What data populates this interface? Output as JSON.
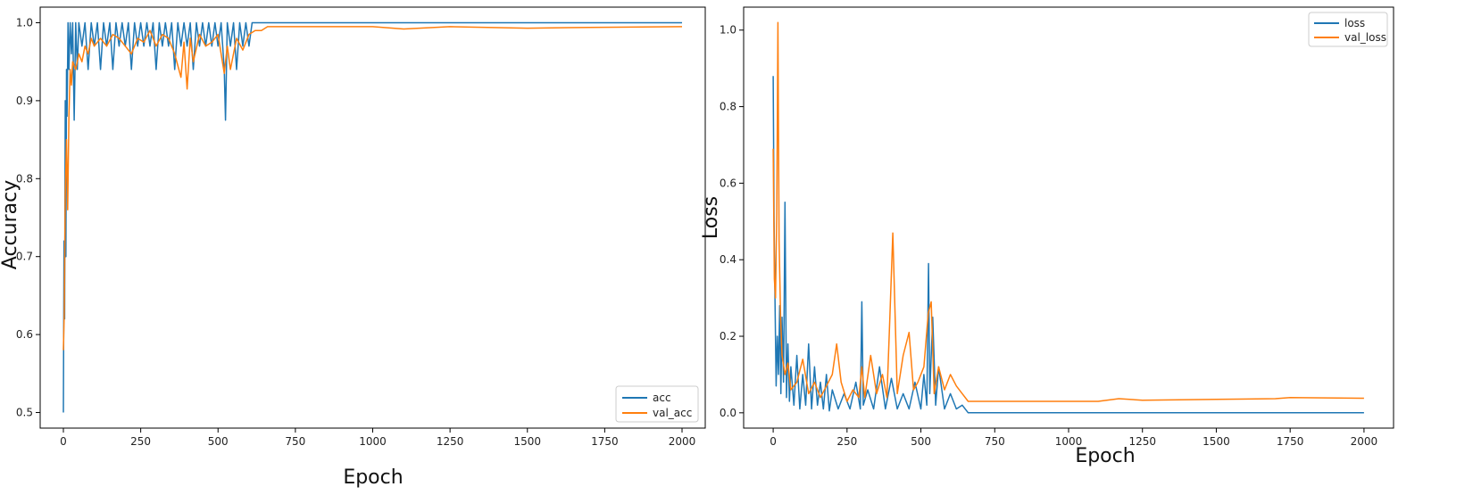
{
  "colors": {
    "train": "#1f77b4",
    "val": "#ff7f0e"
  },
  "chart_data": [
    {
      "type": "line",
      "title": "",
      "xlabel": "Epoch",
      "ylabel": "Accuracy",
      "xlim": [
        -75,
        2075
      ],
      "ylim": [
        0.48,
        1.02
      ],
      "xticks": [
        0,
        250,
        500,
        750,
        1000,
        1250,
        1500,
        1750,
        2000
      ],
      "yticks": [
        0.5,
        0.6,
        0.7,
        0.8,
        0.9,
        1.0
      ],
      "ytick_labels": [
        "0.5",
        "0.6",
        "0.7",
        "0.8",
        "0.9",
        "1.0"
      ],
      "legend": "bottom-right",
      "grid": false,
      "series": [
        {
          "name": "acc",
          "color": "#1f77b4",
          "x": [
            0,
            2,
            4,
            6,
            8,
            10,
            12,
            15,
            18,
            22,
            26,
            30,
            35,
            40,
            45,
            50,
            60,
            70,
            80,
            90,
            100,
            110,
            120,
            130,
            140,
            150,
            160,
            170,
            180,
            190,
            200,
            210,
            220,
            230,
            240,
            250,
            260,
            270,
            280,
            290,
            300,
            310,
            320,
            330,
            340,
            350,
            360,
            370,
            380,
            390,
            400,
            410,
            420,
            430,
            440,
            450,
            460,
            470,
            480,
            490,
            500,
            510,
            520,
            524,
            530,
            540,
            550,
            560,
            570,
            580,
            590,
            600,
            610,
            620,
            650,
            700,
            800,
            1000,
            1250,
            1500,
            1750,
            2000
          ],
          "y": [
            0.5,
            0.72,
            0.62,
            0.9,
            0.7,
            0.94,
            0.88,
            1.0,
            0.94,
            1.0,
            0.96,
            1.0,
            0.875,
            1.0,
            0.94,
            1.0,
            0.97,
            1.0,
            0.94,
            1.0,
            0.97,
            1.0,
            0.94,
            1.0,
            0.97,
            1.0,
            0.94,
            1.0,
            0.97,
            1.0,
            0.97,
            1.0,
            0.94,
            1.0,
            0.97,
            1.0,
            0.97,
            1.0,
            0.97,
            1.0,
            0.94,
            1.0,
            0.97,
            1.0,
            0.97,
            1.0,
            0.94,
            1.0,
            0.97,
            1.0,
            0.97,
            1.0,
            0.94,
            1.0,
            0.97,
            1.0,
            0.97,
            1.0,
            0.97,
            1.0,
            0.97,
            1.0,
            0.94,
            0.875,
            1.0,
            0.97,
            1.0,
            0.94,
            1.0,
            0.97,
            1.0,
            0.97,
            1.0,
            1.0,
            1.0,
            1.0,
            1.0,
            1.0,
            1.0,
            1.0,
            1.0,
            1.0
          ]
        },
        {
          "name": "val_acc",
          "color": "#ff7f0e",
          "x": [
            0,
            3,
            6,
            10,
            14,
            18,
            22,
            26,
            30,
            40,
            50,
            60,
            70,
            80,
            90,
            100,
            120,
            140,
            160,
            180,
            200,
            220,
            240,
            260,
            280,
            300,
            320,
            340,
            360,
            380,
            390,
            400,
            410,
            420,
            440,
            460,
            480,
            500,
            520,
            530,
            540,
            560,
            580,
            600,
            620,
            640,
            660,
            700,
            800,
            1000,
            1100,
            1250,
            1500,
            1700,
            2000
          ],
          "y": [
            0.58,
            0.63,
            0.78,
            0.85,
            0.76,
            0.88,
            0.94,
            0.92,
            0.95,
            0.94,
            0.96,
            0.95,
            0.97,
            0.96,
            0.98,
            0.97,
            0.98,
            0.97,
            0.985,
            0.98,
            0.97,
            0.96,
            0.98,
            0.975,
            0.99,
            0.97,
            0.985,
            0.98,
            0.96,
            0.93,
            0.975,
            0.915,
            0.98,
            0.95,
            0.985,
            0.97,
            0.975,
            0.985,
            0.935,
            0.97,
            0.94,
            0.98,
            0.965,
            0.985,
            0.99,
            0.99,
            0.995,
            0.995,
            0.995,
            0.995,
            0.992,
            0.995,
            0.993,
            0.994,
            0.995
          ]
        }
      ]
    },
    {
      "type": "line",
      "title": "",
      "xlabel": "Epoch",
      "ylabel": "Loss",
      "xlim": [
        -100,
        2100
      ],
      "ylim": [
        -0.04,
        1.06
      ],
      "xticks": [
        0,
        250,
        500,
        750,
        1000,
        1250,
        1500,
        1750,
        2000
      ],
      "yticks": [
        0.0,
        0.2,
        0.4,
        0.6,
        0.8,
        1.0
      ],
      "ytick_labels": [
        "0.0",
        "0.2",
        "0.4",
        "0.6",
        "0.8",
        "1.0"
      ],
      "legend": "top-right",
      "grid": false,
      "series": [
        {
          "name": "loss",
          "color": "#1f77b4",
          "x": [
            0,
            3,
            6,
            10,
            14,
            18,
            22,
            26,
            30,
            35,
            40,
            45,
            50,
            55,
            60,
            70,
            80,
            90,
            100,
            110,
            120,
            130,
            140,
            150,
            160,
            170,
            180,
            190,
            200,
            220,
            240,
            260,
            280,
            295,
            300,
            305,
            320,
            340,
            360,
            380,
            400,
            420,
            440,
            460,
            480,
            500,
            510,
            520,
            526,
            530,
            540,
            550,
            560,
            580,
            600,
            620,
            640,
            660,
            700,
            800,
            1000,
            1250,
            1500,
            1750,
            2000
          ],
          "y": [
            0.88,
            0.5,
            0.3,
            0.07,
            0.2,
            0.1,
            0.28,
            0.05,
            0.25,
            0.08,
            0.55,
            0.04,
            0.18,
            0.03,
            0.12,
            0.02,
            0.15,
            0.01,
            0.1,
            0.02,
            0.18,
            0.01,
            0.12,
            0.02,
            0.08,
            0.01,
            0.1,
            0.005,
            0.06,
            0.01,
            0.05,
            0.01,
            0.08,
            0.01,
            0.29,
            0.02,
            0.06,
            0.01,
            0.12,
            0.01,
            0.09,
            0.01,
            0.05,
            0.01,
            0.08,
            0.01,
            0.1,
            0.02,
            0.39,
            0.05,
            0.25,
            0.02,
            0.12,
            0.01,
            0.05,
            0.01,
            0.02,
            0.0,
            0.0,
            0.0,
            0.0,
            0.0,
            0.0,
            0.0,
            0.0
          ]
        },
        {
          "name": "val_loss",
          "color": "#ff7f0e",
          "x": [
            0,
            4,
            8,
            12,
            16,
            20,
            25,
            30,
            40,
            50,
            60,
            80,
            100,
            120,
            140,
            160,
            180,
            200,
            215,
            230,
            250,
            270,
            290,
            300,
            310,
            330,
            350,
            370,
            385,
            395,
            405,
            420,
            440,
            460,
            475,
            490,
            510,
            525,
            535,
            545,
            560,
            580,
            600,
            620,
            640,
            660,
            700,
            800,
            1000,
            1100,
            1170,
            1250,
            1500,
            1700,
            1750,
            2000
          ],
          "y": [
            0.69,
            0.35,
            0.3,
            0.52,
            1.02,
            0.45,
            0.25,
            0.15,
            0.1,
            0.13,
            0.06,
            0.08,
            0.14,
            0.05,
            0.08,
            0.04,
            0.07,
            0.1,
            0.18,
            0.08,
            0.03,
            0.06,
            0.04,
            0.12,
            0.04,
            0.15,
            0.05,
            0.1,
            0.04,
            0.25,
            0.47,
            0.05,
            0.15,
            0.21,
            0.06,
            0.08,
            0.12,
            0.26,
            0.29,
            0.05,
            0.12,
            0.06,
            0.1,
            0.07,
            0.05,
            0.03,
            0.03,
            0.03,
            0.03,
            0.03,
            0.037,
            0.033,
            0.035,
            0.037,
            0.04,
            0.038
          ]
        }
      ]
    }
  ]
}
